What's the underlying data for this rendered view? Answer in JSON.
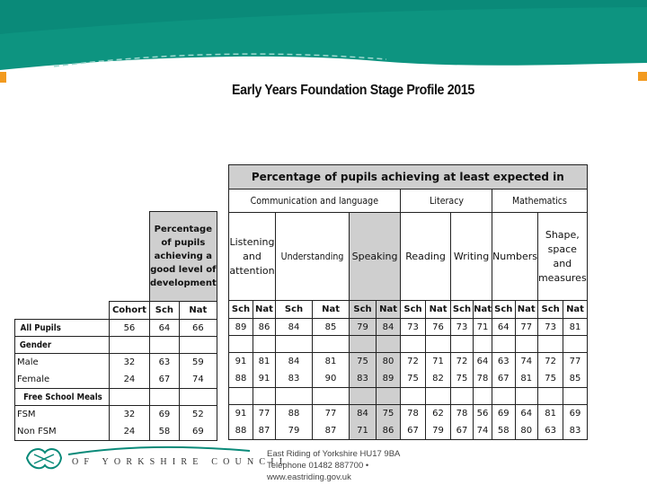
{
  "page_title": "Early Years Foundation Stage Profile 2015",
  "left_table": {
    "header_pct": "Percentage of pupils achieving a good level of development",
    "col_headers": [
      "Cohort",
      "Sch",
      "Nat"
    ],
    "rows": {
      "all_pupils": {
        "label": "All Pupils",
        "values": [
          "56",
          "64",
          "66"
        ]
      },
      "gender": {
        "label": "Gender"
      },
      "male_female": {
        "labels": "Male\nFemale",
        "values": [
          "32\n24",
          "63\n67",
          "59\n74"
        ]
      },
      "fsm_group": {
        "label": "Free School Meals"
      },
      "fsm_nonfsm": {
        "labels": "FSM\nNon FSM",
        "values": [
          "32\n24",
          "69\n58",
          "52\n69"
        ]
      }
    }
  },
  "right_table": {
    "title": "Percentage of pupils achieving at least expected in",
    "areas": [
      "Communication and language",
      "Literacy",
      "Mathematics"
    ],
    "subjects": [
      "Listening and attention",
      "Understanding",
      "Speaking",
      "Reading",
      "Writing",
      "Numbers",
      "Shape, space and measures"
    ],
    "sub_headers": [
      "Sch",
      "Nat",
      "Sch",
      "Nat",
      "Sch",
      "Nat",
      "Sch",
      "Nat",
      "Sch",
      "Nat",
      "Sch",
      "Nat",
      "Sch",
      "Nat"
    ],
    "all_pupils": [
      "89",
      "86",
      "84",
      "85",
      "79",
      "84",
      "73",
      "76",
      "73",
      "71",
      "64",
      "77",
      "73",
      "81"
    ],
    "male_female": [
      "91\n88",
      "81\n91",
      "84\n83",
      "81\n90",
      "75\n83",
      "80\n89",
      "72\n75",
      "71\n82",
      "72\n75",
      "64\n78",
      "63\n67",
      "74\n81",
      "72\n75",
      "77\n85"
    ],
    "fsm_nonfsm": [
      "91\n88",
      "77\n87",
      "88\n79",
      "77\n87",
      "84\n71",
      "75\n86",
      "78\n67",
      "62\n79",
      "78\n67",
      "56\n74",
      "69\n58",
      "64\n80",
      "81\n63",
      "69\n83"
    ]
  },
  "footer": {
    "council_name": "OF YORKSHIRE COUNCIL",
    "address_line1": "East Riding of Yorkshire HU17 9BA",
    "address_line2": "Telephone 01482 887700 •",
    "address_line3": "www.eastriding.gov.uk"
  },
  "colors": {
    "banner_teal": "#0a8a79",
    "banner_light": "#12a08d",
    "accent_orange": "#f29a1f",
    "header_grey": "#cfcfcf"
  }
}
